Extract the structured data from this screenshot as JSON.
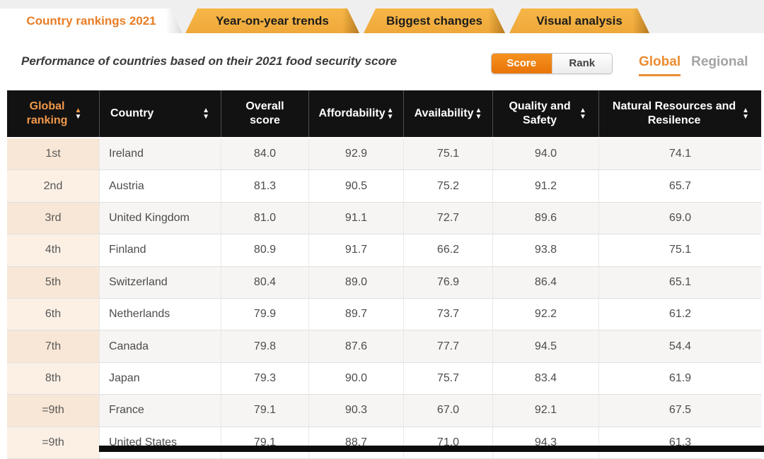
{
  "tabs": [
    {
      "label": "Country rankings 2021",
      "active": true
    },
    {
      "label": "Year-on-year trends",
      "active": false
    },
    {
      "label": "Biggest changes",
      "active": false
    },
    {
      "label": "Visual analysis",
      "active": false
    }
  ],
  "subtitle": "Performance of countries based on their 2021 food security score",
  "view_toggle": {
    "score_label": "Score",
    "rank_label": "Rank",
    "selected": "Score"
  },
  "scope_toggle": {
    "global_label": "Global",
    "regional_label": "Regional",
    "selected": "Global"
  },
  "table": {
    "columns": [
      {
        "label": "Global ranking",
        "sortable": true
      },
      {
        "label": "Country",
        "sortable": true
      },
      {
        "label": "Overall score",
        "sortable": false
      },
      {
        "label": "Affordability",
        "sortable": true
      },
      {
        "label": "Availability",
        "sortable": true
      },
      {
        "label": "Quality and Safety",
        "sortable": true
      },
      {
        "label": "Natural Resources and Resilence",
        "sortable": true
      }
    ],
    "rows": [
      {
        "rank": "1st",
        "country": "Ireland",
        "overall": "84.0",
        "affordability": "92.9",
        "availability": "75.1",
        "quality": "94.0",
        "natural": "74.1"
      },
      {
        "rank": "2nd",
        "country": "Austria",
        "overall": "81.3",
        "affordability": "90.5",
        "availability": "75.2",
        "quality": "91.2",
        "natural": "65.7"
      },
      {
        "rank": "3rd",
        "country": "United Kingdom",
        "overall": "81.0",
        "affordability": "91.1",
        "availability": "72.7",
        "quality": "89.6",
        "natural": "69.0"
      },
      {
        "rank": "4th",
        "country": "Finland",
        "overall": "80.9",
        "affordability": "91.7",
        "availability": "66.2",
        "quality": "93.8",
        "natural": "75.1"
      },
      {
        "rank": "5th",
        "country": "Switzerland",
        "overall": "80.4",
        "affordability": "89.0",
        "availability": "76.9",
        "quality": "86.4",
        "natural": "65.1"
      },
      {
        "rank": "6th",
        "country": "Netherlands",
        "overall": "79.9",
        "affordability": "89.7",
        "availability": "73.7",
        "quality": "92.2",
        "natural": "61.2"
      },
      {
        "rank": "7th",
        "country": "Canada",
        "overall": "79.8",
        "affordability": "87.6",
        "availability": "77.7",
        "quality": "94.5",
        "natural": "54.4"
      },
      {
        "rank": "8th",
        "country": "Japan",
        "overall": "79.3",
        "affordability": "90.0",
        "availability": "75.7",
        "quality": "83.4",
        "natural": "61.9"
      },
      {
        "rank": "=9th",
        "country": "France",
        "overall": "79.1",
        "affordability": "90.3",
        "availability": "67.0",
        "quality": "92.1",
        "natural": "67.5"
      },
      {
        "rank": "=9th",
        "country": "United States",
        "overall": "79.1",
        "affordability": "88.7",
        "availability": "71.0",
        "quality": "94.3",
        "natural": "61.3"
      }
    ]
  },
  "icons": {
    "sort_up": "▲",
    "sort_down": "▼"
  },
  "colors": {
    "accent_orange": "#e87d25",
    "tab_orange": "#f2ad3e",
    "header_bg": "#121212",
    "ranking_header_orange": "#f2994a",
    "rank_column_peach": "#f8e7d6",
    "alt_row_gray": "#f6f5f4",
    "score_button_orange": "#ee8314"
  }
}
